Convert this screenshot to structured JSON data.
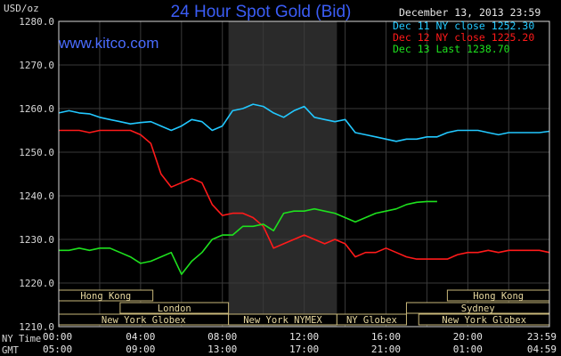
{
  "header": {
    "title": "24 Hour Spot Gold (Bid)",
    "date": "December 13, 2013 23:59",
    "watermark": "www.kitco.com",
    "unit_label": "USD/oz"
  },
  "legend": [
    {
      "text": "Dec 11 NY close 1252.30",
      "color": "#22c8ff"
    },
    {
      "text": "Dec 12 NY close 1225.20",
      "color": "#ff1a1a"
    },
    {
      "text": "Dec 13 Last 1238.70",
      "color": "#1ee11e"
    }
  ],
  "axes": {
    "y_ticks": [
      "1280.0",
      "1270.0",
      "1260.0",
      "1250.0",
      "1240.0",
      "1230.0",
      "1220.0",
      "1210.0"
    ],
    "ny_time_label": "NY Time",
    "gmt_label": "GMT",
    "ny_ticks": [
      "00:00",
      "04:00",
      "08:00",
      "12:00",
      "16:00",
      "20:00",
      "23:59"
    ],
    "gmt_ticks": [
      "05:00",
      "09:00",
      "13:00",
      "17:00",
      "21:00",
      "01:00",
      "04:59"
    ]
  },
  "sessions": [
    {
      "label": "Hong Kong",
      "start": 0,
      "end": 4.6
    },
    {
      "label": "Hong Kong",
      "start": 19.0,
      "end": 23.99
    },
    {
      "label": "London",
      "start": 3.0,
      "end": 8.3
    },
    {
      "label": "Sydney",
      "start": 17.0,
      "end": 23.99
    },
    {
      "label": "New York Globex",
      "start": 0,
      "end": 8.3
    },
    {
      "label": "New York NYMEX",
      "start": 8.3,
      "end": 13.6
    },
    {
      "label": "NY Globex",
      "start": 13.6,
      "end": 17.0
    },
    {
      "label": "New York Globex",
      "start": 17.6,
      "end": 23.99
    }
  ],
  "chart_data": {
    "type": "line",
    "title": "24 Hour Spot Gold (Bid)",
    "ylabel": "USD/oz",
    "xlabel": "",
    "ylim": [
      1210,
      1280
    ],
    "xlim": [
      0,
      23.99
    ],
    "shaded_region": [
      8.3,
      13.6
    ],
    "grid": true,
    "series": [
      {
        "name": "Dec 11 NY close 1252.30",
        "color": "#22c8ff",
        "x": [
          0,
          0.5,
          1,
          1.5,
          2,
          2.5,
          3,
          3.5,
          4,
          4.5,
          5,
          5.5,
          6,
          6.5,
          7,
          7.5,
          8,
          8.5,
          9,
          9.5,
          10,
          10.5,
          11,
          11.5,
          12,
          12.5,
          13,
          13.5,
          14,
          14.5,
          15,
          15.5,
          16,
          16.5,
          17,
          17.5,
          18,
          18.5,
          19,
          19.5,
          20,
          20.5,
          21,
          21.5,
          22,
          22.5,
          23,
          23.5,
          23.99
        ],
        "y": [
          1259,
          1259.5,
          1259,
          1258.8,
          1258,
          1257.5,
          1257,
          1256.5,
          1256.8,
          1257,
          1256,
          1255,
          1256,
          1257.5,
          1257,
          1255,
          1256,
          1259.5,
          1260,
          1261,
          1260.5,
          1259,
          1258,
          1259.5,
          1260.5,
          1258,
          1257.5,
          1257,
          1257.5,
          1254.5,
          1254,
          1253.5,
          1253,
          1252.5,
          1253,
          1253,
          1253.5,
          1253.5,
          1254.5,
          1255,
          1255,
          1255,
          1254.5,
          1254,
          1254.5,
          1254.5,
          1254.5,
          1254.5,
          1254.8
        ]
      },
      {
        "name": "Dec 12 NY close 1225.20",
        "color": "#ff1a1a",
        "x": [
          0,
          0.5,
          1,
          1.5,
          2,
          2.5,
          3,
          3.5,
          4,
          4.5,
          5,
          5.5,
          6,
          6.5,
          7,
          7.5,
          8,
          8.5,
          9,
          9.5,
          10,
          10.5,
          11,
          11.5,
          12,
          12.5,
          13,
          13.5,
          14,
          14.5,
          15,
          15.5,
          16,
          16.5,
          17,
          17.5,
          18,
          18.5,
          19,
          19.5,
          20,
          20.5,
          21,
          21.5,
          22,
          22.5,
          23,
          23.5,
          23.99
        ],
        "y": [
          1255,
          1255,
          1255,
          1254.5,
          1255,
          1255,
          1255,
          1255,
          1254,
          1252,
          1245,
          1242,
          1243,
          1244,
          1243,
          1238,
          1235.5,
          1236,
          1236,
          1235,
          1233,
          1228,
          1229,
          1230,
          1231,
          1230,
          1229,
          1230,
          1229,
          1226,
          1227,
          1227,
          1228,
          1227,
          1226,
          1225.5,
          1225.5,
          1225.5,
          1225.5,
          1226.5,
          1227,
          1227,
          1227.5,
          1227,
          1227.5,
          1227.5,
          1227.5,
          1227.5,
          1227
        ]
      },
      {
        "name": "Dec 13 Last 1238.70",
        "color": "#1ee11e",
        "x": [
          0,
          0.5,
          1,
          1.5,
          2,
          2.5,
          3,
          3.5,
          4,
          4.5,
          5,
          5.5,
          6,
          6.5,
          7,
          7.5,
          8,
          8.5,
          9,
          9.5,
          10,
          10.5,
          11,
          11.5,
          12,
          12.5,
          13,
          13.5,
          14,
          14.5,
          15,
          15.5,
          16,
          16.5,
          17,
          17.5,
          18,
          18.5
        ],
        "y": [
          1227.5,
          1227.5,
          1228,
          1227.5,
          1228,
          1228,
          1227,
          1226,
          1224.5,
          1225,
          1226,
          1227,
          1222,
          1225,
          1227,
          1230,
          1231,
          1231,
          1233,
          1233,
          1233.5,
          1232,
          1236,
          1236.5,
          1236.5,
          1237,
          1236.5,
          1236,
          1235,
          1234,
          1235,
          1236,
          1236.5,
          1237,
          1238,
          1238.5,
          1238.7,
          1238.7
        ]
      }
    ]
  }
}
